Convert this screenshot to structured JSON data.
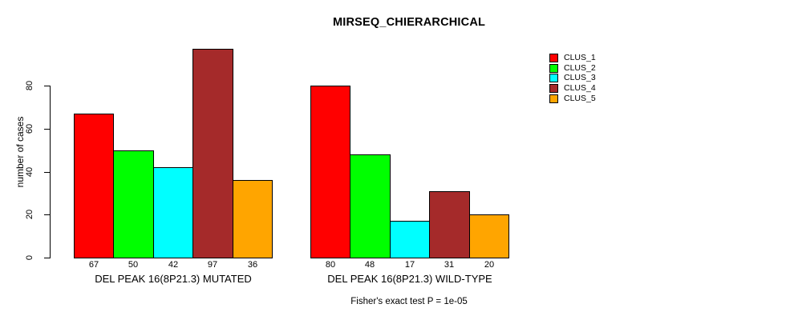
{
  "chart_data": {
    "type": "bar",
    "title": "MIRSEQ_CHIERARCHICAL",
    "ylabel": "number of cases",
    "xlabel": "",
    "footnote": "Fisher's exact test P = 1e-05",
    "grid": false,
    "legend_position": "right",
    "ylim": [
      0,
      100
    ],
    "yticks": [
      0,
      20,
      40,
      60,
      80
    ],
    "series": [
      {
        "name": "CLUS_1",
        "color": "#ff0000"
      },
      {
        "name": "CLUS_2",
        "color": "#00ff00"
      },
      {
        "name": "CLUS_3",
        "color": "#00ffff"
      },
      {
        "name": "CLUS_4",
        "color": "#a52a2a"
      },
      {
        "name": "CLUS_5",
        "color": "#ffa500"
      }
    ],
    "groups": [
      {
        "label": "DEL PEAK 16(8P21.3) MUTATED",
        "values": [
          67,
          50,
          42,
          97,
          36
        ]
      },
      {
        "label": "DEL PEAK 16(8P21.3) WILD-TYPE",
        "values": [
          80,
          48,
          17,
          31,
          20
        ]
      }
    ],
    "bar_value_labels_shown": true
  }
}
